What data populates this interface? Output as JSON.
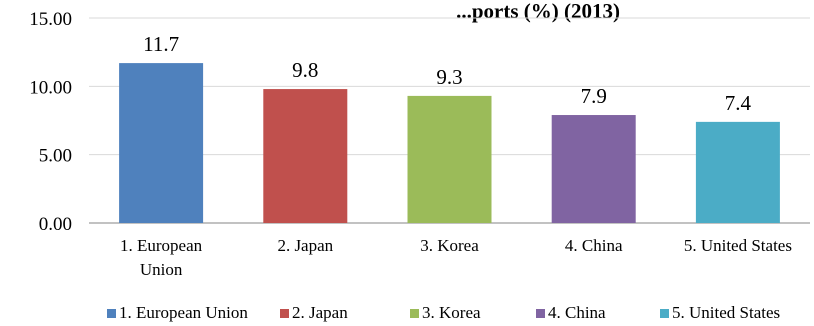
{
  "chart_data": {
    "type": "bar",
    "title": "...ports (%) (2013)",
    "xlabel": "",
    "ylabel": "",
    "categories": [
      "1. European Union",
      "2. Japan",
      "3. Korea",
      "4. China",
      "5. United States"
    ],
    "category_lines": [
      [
        "1. European",
        "Union"
      ],
      [
        "2. Japan"
      ],
      [
        "3. Korea"
      ],
      [
        "4. China"
      ],
      [
        "5. United States"
      ]
    ],
    "values": [
      11.7,
      9.8,
      9.3,
      7.9,
      7.4
    ],
    "value_labels": [
      "11.7",
      "9.8",
      "9.3",
      "7.9",
      "7.4"
    ],
    "colors": [
      "#4f81bd",
      "#c0504d",
      "#9bbb59",
      "#8064a2",
      "#4bacc6"
    ],
    "ylim": [
      0,
      15
    ],
    "yticks": [
      0,
      5,
      10,
      15
    ],
    "ytick_labels": [
      "0.00",
      "5.00",
      "10.00",
      "15.00"
    ],
    "grid": true,
    "legend": {
      "position": "bottom",
      "entries": [
        "1. European Union",
        "2. Japan",
        "3. Korea",
        "4. China",
        "5. United States"
      ]
    }
  }
}
